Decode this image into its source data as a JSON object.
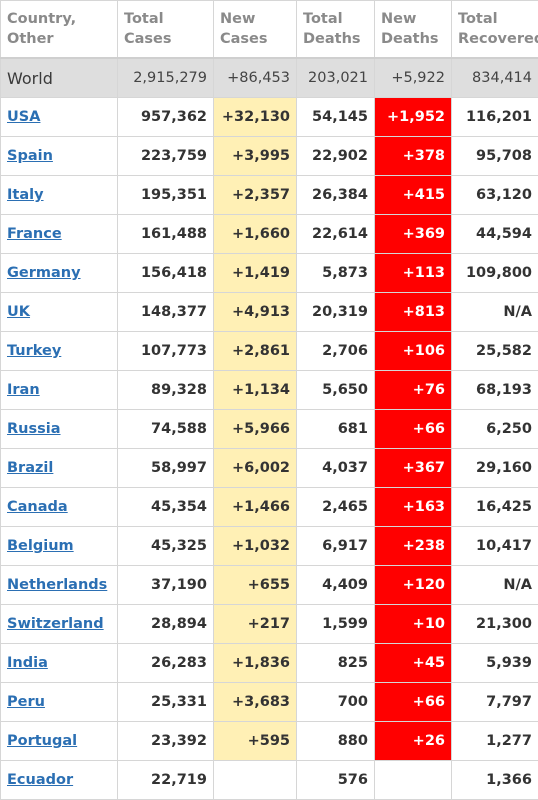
{
  "headers": {
    "country": [
      "Country,",
      "Other"
    ],
    "total_cases": [
      "Total",
      "Cases"
    ],
    "new_cases": [
      "New",
      "Cases"
    ],
    "total_deaths": [
      "Total",
      "Deaths"
    ],
    "new_deaths": [
      "New",
      "Deaths"
    ],
    "total_recovered": [
      "Total",
      "Recovered"
    ]
  },
  "world": {
    "name": "World",
    "total_cases": "2,915,279",
    "new_cases": "+86,453",
    "total_deaths": "203,021",
    "new_deaths": "+5,922",
    "total_recovered": "834,414"
  },
  "rows": [
    {
      "name": "USA",
      "total_cases": "957,362",
      "new_cases": "+32,130",
      "total_deaths": "54,145",
      "new_deaths": "+1,952",
      "total_recovered": "116,201"
    },
    {
      "name": "Spain",
      "total_cases": "223,759",
      "new_cases": "+3,995",
      "total_deaths": "22,902",
      "new_deaths": "+378",
      "total_recovered": "95,708"
    },
    {
      "name": "Italy",
      "total_cases": "195,351",
      "new_cases": "+2,357",
      "total_deaths": "26,384",
      "new_deaths": "+415",
      "total_recovered": "63,120"
    },
    {
      "name": "France",
      "total_cases": "161,488",
      "new_cases": "+1,660",
      "total_deaths": "22,614",
      "new_deaths": "+369",
      "total_recovered": "44,594"
    },
    {
      "name": "Germany",
      "total_cases": "156,418",
      "new_cases": "+1,419",
      "total_deaths": "5,873",
      "new_deaths": "+113",
      "total_recovered": "109,800"
    },
    {
      "name": "UK",
      "total_cases": "148,377",
      "new_cases": "+4,913",
      "total_deaths": "20,319",
      "new_deaths": "+813",
      "total_recovered": "N/A"
    },
    {
      "name": "Turkey",
      "total_cases": "107,773",
      "new_cases": "+2,861",
      "total_deaths": "2,706",
      "new_deaths": "+106",
      "total_recovered": "25,582"
    },
    {
      "name": "Iran",
      "total_cases": "89,328",
      "new_cases": "+1,134",
      "total_deaths": "5,650",
      "new_deaths": "+76",
      "total_recovered": "68,193"
    },
    {
      "name": "Russia",
      "total_cases": "74,588",
      "new_cases": "+5,966",
      "total_deaths": "681",
      "new_deaths": "+66",
      "total_recovered": "6,250"
    },
    {
      "name": "Brazil",
      "total_cases": "58,997",
      "new_cases": "+6,002",
      "total_deaths": "4,037",
      "new_deaths": "+367",
      "total_recovered": "29,160"
    },
    {
      "name": "Canada",
      "total_cases": "45,354",
      "new_cases": "+1,466",
      "total_deaths": "2,465",
      "new_deaths": "+163",
      "total_recovered": "16,425"
    },
    {
      "name": "Belgium",
      "total_cases": "45,325",
      "new_cases": "+1,032",
      "total_deaths": "6,917",
      "new_deaths": "+238",
      "total_recovered": "10,417"
    },
    {
      "name": "Netherlands",
      "total_cases": "37,190",
      "new_cases": "+655",
      "total_deaths": "4,409",
      "new_deaths": "+120",
      "total_recovered": "N/A"
    },
    {
      "name": "Switzerland",
      "total_cases": "28,894",
      "new_cases": "+217",
      "total_deaths": "1,599",
      "new_deaths": "+10",
      "total_recovered": "21,300"
    },
    {
      "name": "India",
      "total_cases": "26,283",
      "new_cases": "+1,836",
      "total_deaths": "825",
      "new_deaths": "+45",
      "total_recovered": "5,939"
    },
    {
      "name": "Peru",
      "total_cases": "25,331",
      "new_cases": "+3,683",
      "total_deaths": "700",
      "new_deaths": "+66",
      "total_recovered": "7,797"
    },
    {
      "name": "Portugal",
      "total_cases": "23,392",
      "new_cases": "+595",
      "total_deaths": "880",
      "new_deaths": "+26",
      "total_recovered": "1,277"
    },
    {
      "name": "Ecuador",
      "total_cases": "22,719",
      "new_cases": "",
      "total_deaths": "576",
      "new_deaths": "",
      "total_recovered": "1,366"
    }
  ],
  "colors": {
    "link": "#2b6fb3",
    "new_cases_bg": "#fff0b5",
    "new_deaths_bg": "#ff0000",
    "world_row_bg": "#dedede",
    "header_text": "#8a8a8a"
  }
}
